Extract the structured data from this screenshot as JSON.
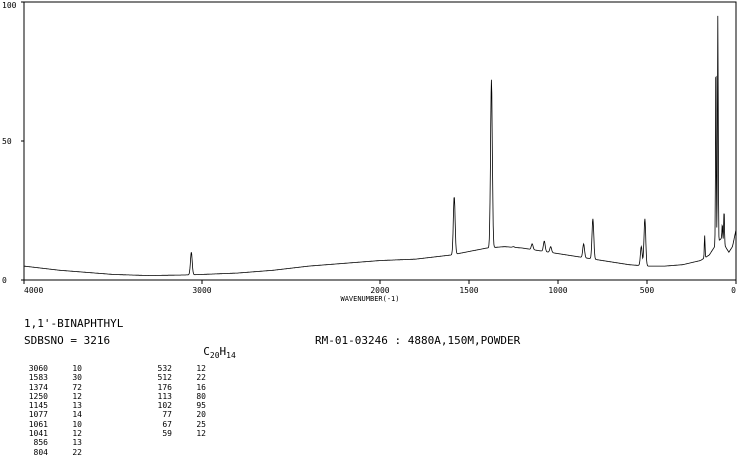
{
  "chart_data": {
    "type": "line",
    "title": "",
    "xlabel": "WAVENUMBER(-1)",
    "ylabel": "",
    "xlim": [
      4000,
      0
    ],
    "ylim": [
      0,
      100
    ],
    "grid": false,
    "x_ticks": [
      {
        "value": 4000,
        "label": "4000"
      },
      {
        "value": 3000,
        "label": "3000"
      },
      {
        "value": 2000,
        "label": "2000"
      },
      {
        "value": 1500,
        "label": "1500"
      },
      {
        "value": 1000,
        "label": "1000"
      },
      {
        "value": 500,
        "label": "500"
      },
      {
        "value": 0,
        "label": "0"
      }
    ],
    "y_ticks": [
      {
        "value": 100,
        "label": "100"
      },
      {
        "value": 50,
        "label": "50"
      },
      {
        "value": 0,
        "label": "0"
      }
    ],
    "series": [
      {
        "color": "#000000",
        "baseline": [
          [
            4000,
            5
          ],
          [
            3800,
            3.5
          ],
          [
            3500,
            2
          ],
          [
            3300,
            1.6
          ],
          [
            3100,
            1.8
          ],
          [
            3000,
            2
          ],
          [
            2800,
            2.5
          ],
          [
            2600,
            3.5
          ],
          [
            2400,
            5
          ],
          [
            2200,
            6
          ],
          [
            2000,
            7
          ],
          [
            1800,
            7.5
          ],
          [
            1600,
            9
          ],
          [
            1400,
            11.5
          ],
          [
            1300,
            12
          ],
          [
            1200,
            11.5
          ],
          [
            1100,
            10.5
          ],
          [
            1000,
            9.5
          ],
          [
            900,
            8.5
          ],
          [
            800,
            7.5
          ],
          [
            700,
            6.5
          ],
          [
            600,
            5.5
          ],
          [
            500,
            5
          ],
          [
            400,
            5
          ],
          [
            300,
            5.5
          ],
          [
            200,
            7
          ],
          [
            150,
            9
          ],
          [
            120,
            12
          ],
          [
            100,
            14
          ],
          [
            80,
            15
          ],
          [
            60,
            12
          ],
          [
            40,
            10
          ],
          [
            20,
            12
          ],
          [
            0,
            18
          ]
        ],
        "peaks": [
          {
            "x": 3060,
            "y": 10
          },
          {
            "x": 1583,
            "y": 30
          },
          {
            "x": 1374,
            "y": 72
          },
          {
            "x": 1250,
            "y": 12
          },
          {
            "x": 1145,
            "y": 13
          },
          {
            "x": 1077,
            "y": 14
          },
          {
            "x": 1061,
            "y": 10
          },
          {
            "x": 1041,
            "y": 12
          },
          {
            "x": 856,
            "y": 13
          },
          {
            "x": 804,
            "y": 22
          },
          {
            "x": 532,
            "y": 12
          },
          {
            "x": 512,
            "y": 22
          },
          {
            "x": 176,
            "y": 16
          },
          {
            "x": 113,
            "y": 80
          },
          {
            "x": 102,
            "y": 95
          },
          {
            "x": 77,
            "y": 20
          },
          {
            "x": 67,
            "y": 25
          },
          {
            "x": 59,
            "y": 12
          }
        ]
      }
    ]
  },
  "info": {
    "compound": "1,1'-BINAPHTHYL",
    "sdbs_label": "SDBSNO = 3216",
    "formula_c": "C",
    "formula_c_count": "20",
    "formula_h": "H",
    "formula_h_count": "14",
    "method": "RM-01-03246 : 4880A,150M,POWDER"
  },
  "peak_table": {
    "col1": [
      {
        "x": "3060",
        "y": "10"
      },
      {
        "x": "1583",
        "y": "30"
      },
      {
        "x": "1374",
        "y": "72"
      },
      {
        "x": "1250",
        "y": "12"
      },
      {
        "x": "1145",
        "y": "13"
      },
      {
        "x": "1077",
        "y": "14"
      },
      {
        "x": "1061",
        "y": "10"
      },
      {
        "x": "1041",
        "y": "12"
      },
      {
        "x": "856",
        "y": "13"
      },
      {
        "x": "804",
        "y": "22"
      }
    ],
    "col2": [
      {
        "x": "532",
        "y": "12"
      },
      {
        "x": "512",
        "y": "22"
      },
      {
        "x": "176",
        "y": "16"
      },
      {
        "x": "113",
        "y": "80"
      },
      {
        "x": "102",
        "y": "95"
      },
      {
        "x": "77",
        "y": "20"
      },
      {
        "x": "67",
        "y": "25"
      },
      {
        "x": "59",
        "y": "12"
      }
    ]
  }
}
